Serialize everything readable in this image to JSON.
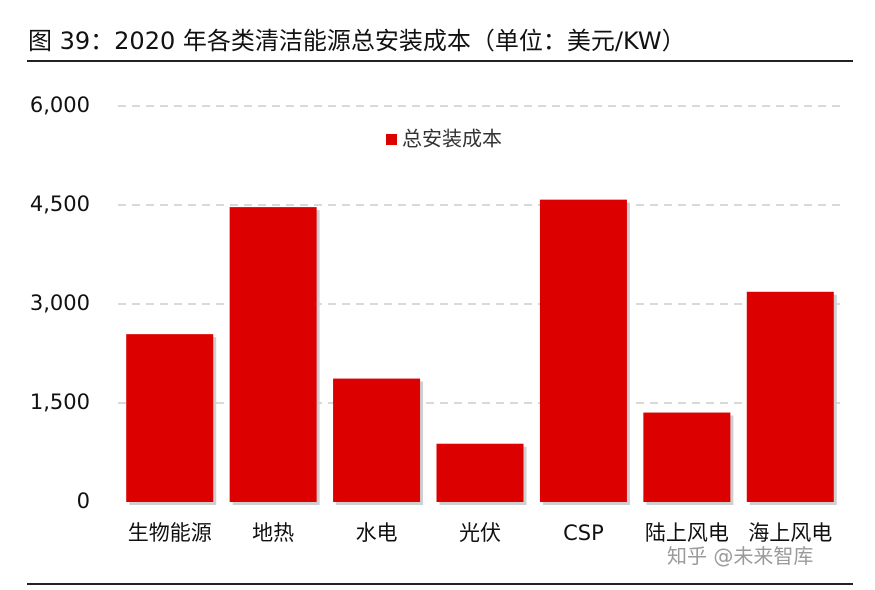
{
  "figure_title": "图 39：2020 年各类清洁能源总安装成本（单位：美元/KW）",
  "watermark": "知乎 @未来智库",
  "colors": {
    "bar": "#dd0000",
    "grid": "#d9d9d9",
    "rule": "#222222"
  },
  "chart_data": {
    "type": "bar",
    "categories": [
      "生物能源",
      "地热",
      "水电",
      "光伏",
      "CSP",
      "陆上风电",
      "海上风电"
    ],
    "series": [
      {
        "name": "总安装成本",
        "values": [
          2543,
          4468,
          1870,
          883,
          4581,
          1355,
          3185
        ]
      }
    ],
    "ylim": [
      0,
      6000
    ],
    "yticks": [
      0,
      1500,
      3000,
      4500,
      6000
    ],
    "ytick_labels": [
      "0",
      "1,500",
      "3,000",
      "4,500",
      "6,000"
    ],
    "grid": true,
    "grid_style": "dashed",
    "legend_position": "top-center"
  }
}
